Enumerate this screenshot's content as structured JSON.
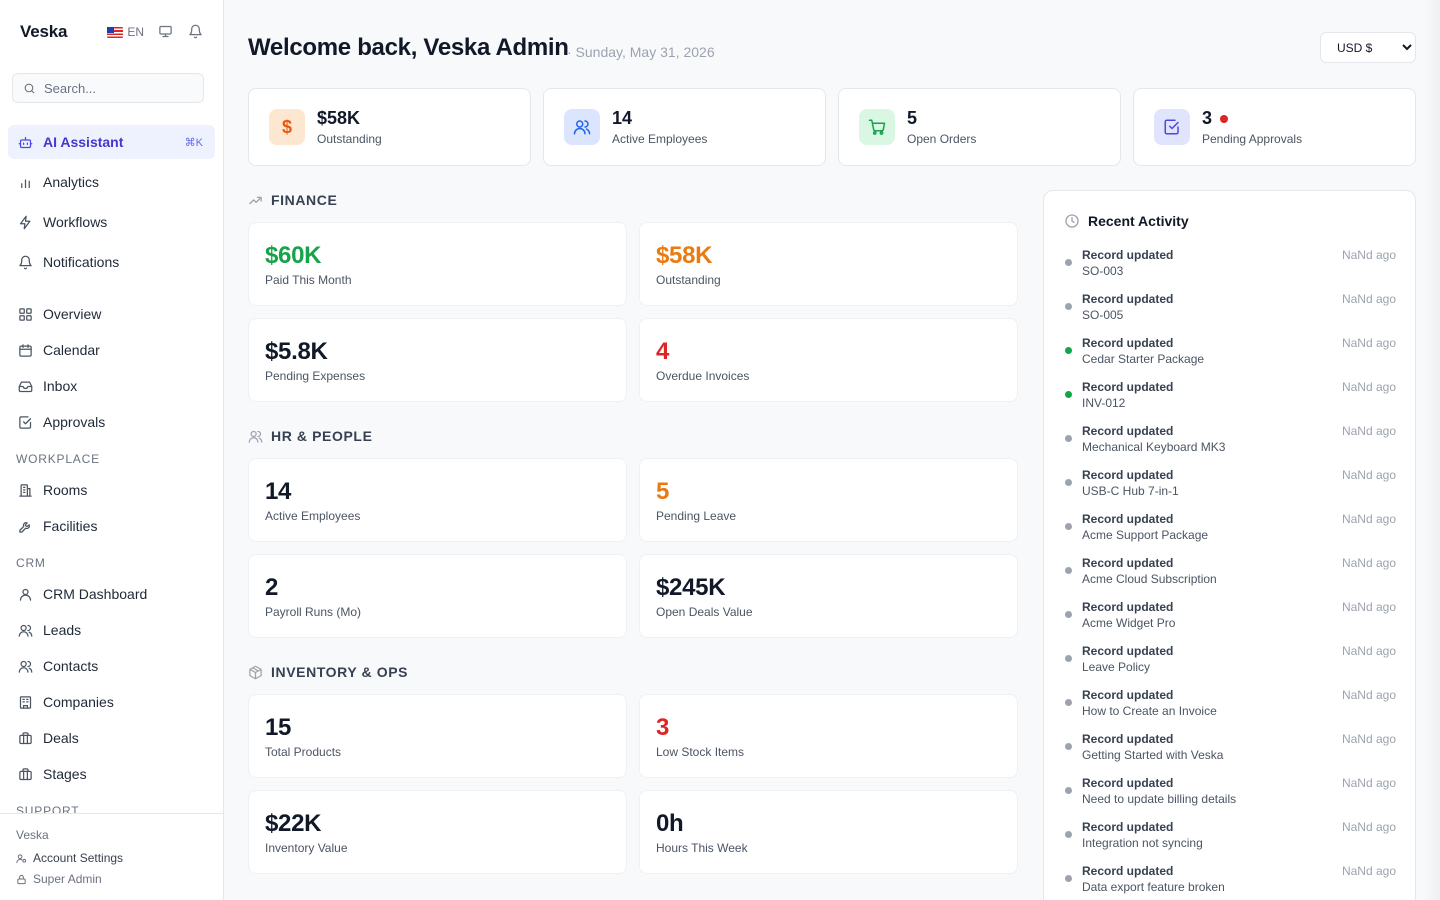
{
  "app": {
    "brand": "Veska",
    "language": "EN",
    "search_placeholder": "Search..."
  },
  "sidebar": {
    "primary": [
      {
        "label": "AI Assistant",
        "shortcut": "⌘K",
        "active": true
      },
      {
        "label": "Analytics"
      },
      {
        "label": "Workflows"
      },
      {
        "label": "Notifications"
      }
    ],
    "main": [
      {
        "label": "Overview"
      },
      {
        "label": "Calendar"
      },
      {
        "label": "Inbox"
      },
      {
        "label": "Approvals"
      }
    ],
    "workplace_label": "WORKPLACE",
    "workplace": [
      {
        "label": "Rooms"
      },
      {
        "label": "Facilities"
      }
    ],
    "crm_label": "CRM",
    "crm": [
      {
        "label": "CRM Dashboard"
      },
      {
        "label": "Leads"
      },
      {
        "label": "Contacts"
      },
      {
        "label": "Companies"
      },
      {
        "label": "Deals"
      },
      {
        "label": "Stages"
      }
    ],
    "support_label": "SUPPORT",
    "footer": {
      "org": "Veska",
      "account_settings": "Account Settings",
      "role": "Super Admin"
    }
  },
  "header": {
    "title": "Welcome back, Veska Admin",
    "date": "· Sunday, May 31, 2026",
    "currency": "USD $"
  },
  "stats": [
    {
      "value": "$58K",
      "label": "Outstanding",
      "icon": "dollar-icon",
      "bg": "#fde7d1",
      "fg": "#ea580c"
    },
    {
      "value": "14",
      "label": "Active Employees",
      "icon": "users-icon",
      "bg": "#dbe6fe",
      "fg": "#2563eb"
    },
    {
      "value": "5",
      "label": "Open Orders",
      "icon": "cart-icon",
      "bg": "#d9f7e3",
      "fg": "#16a34a"
    },
    {
      "value": "3",
      "label": "Pending Approvals",
      "icon": "check-square-icon",
      "bg": "#e0e4fd",
      "fg": "#4f46e5",
      "alert": true
    }
  ],
  "sections": {
    "finance": {
      "title": "FINANCE",
      "metrics": [
        {
          "value": "$60K",
          "label": "Paid This Month",
          "color": "#16a34a"
        },
        {
          "value": "$58K",
          "label": "Outstanding",
          "color": "#ea7a12"
        },
        {
          "value": "$5.8K",
          "label": "Pending Expenses",
          "color": "#111827"
        },
        {
          "value": "4",
          "label": "Overdue Invoices",
          "color": "#dc2626"
        }
      ]
    },
    "hr": {
      "title": "HR & PEOPLE",
      "metrics": [
        {
          "value": "14",
          "label": "Active Employees",
          "color": "#111827"
        },
        {
          "value": "5",
          "label": "Pending Leave",
          "color": "#ea7a12"
        },
        {
          "value": "2",
          "label": "Payroll Runs (Mo)",
          "color": "#111827"
        },
        {
          "value": "$245K",
          "label": "Open Deals Value",
          "color": "#111827"
        }
      ]
    },
    "inventory": {
      "title": "INVENTORY & OPS",
      "metrics": [
        {
          "value": "15",
          "label": "Total Products",
          "color": "#111827"
        },
        {
          "value": "3",
          "label": "Low Stock Items",
          "color": "#dc2626"
        },
        {
          "value": "$22K",
          "label": "Inventory Value",
          "color": "#111827"
        },
        {
          "value": "0h",
          "label": "Hours This Week",
          "color": "#111827"
        }
      ]
    }
  },
  "activity": {
    "title": "Recent Activity",
    "items": [
      {
        "title": "Record updated",
        "subject": "SO-003",
        "time": "NaNd ago",
        "status": "gray"
      },
      {
        "title": "Record updated",
        "subject": "SO-005",
        "time": "NaNd ago",
        "status": "gray"
      },
      {
        "title": "Record updated",
        "subject": "Cedar Starter Package",
        "time": "NaNd ago",
        "status": "green"
      },
      {
        "title": "Record updated",
        "subject": "INV-012",
        "time": "NaNd ago",
        "status": "green"
      },
      {
        "title": "Record updated",
        "subject": "Mechanical Keyboard MK3",
        "time": "NaNd ago",
        "status": "gray"
      },
      {
        "title": "Record updated",
        "subject": "USB-C Hub 7-in-1",
        "time": "NaNd ago",
        "status": "gray"
      },
      {
        "title": "Record updated",
        "subject": "Acme Support Package",
        "time": "NaNd ago",
        "status": "gray"
      },
      {
        "title": "Record updated",
        "subject": "Acme Cloud Subscription",
        "time": "NaNd ago",
        "status": "gray"
      },
      {
        "title": "Record updated",
        "subject": "Acme Widget Pro",
        "time": "NaNd ago",
        "status": "gray"
      },
      {
        "title": "Record updated",
        "subject": "Leave Policy",
        "time": "NaNd ago",
        "status": "gray"
      },
      {
        "title": "Record updated",
        "subject": "How to Create an Invoice",
        "time": "NaNd ago",
        "status": "gray"
      },
      {
        "title": "Record updated",
        "subject": "Getting Started with Veska",
        "time": "NaNd ago",
        "status": "gray"
      },
      {
        "title": "Record updated",
        "subject": "Need to update billing details",
        "time": "NaNd ago",
        "status": "gray"
      },
      {
        "title": "Record updated",
        "subject": "Integration not syncing",
        "time": "NaNd ago",
        "status": "gray"
      },
      {
        "title": "Record updated",
        "subject": "Data export feature broken",
        "time": "NaNd ago",
        "status": "gray"
      }
    ]
  }
}
